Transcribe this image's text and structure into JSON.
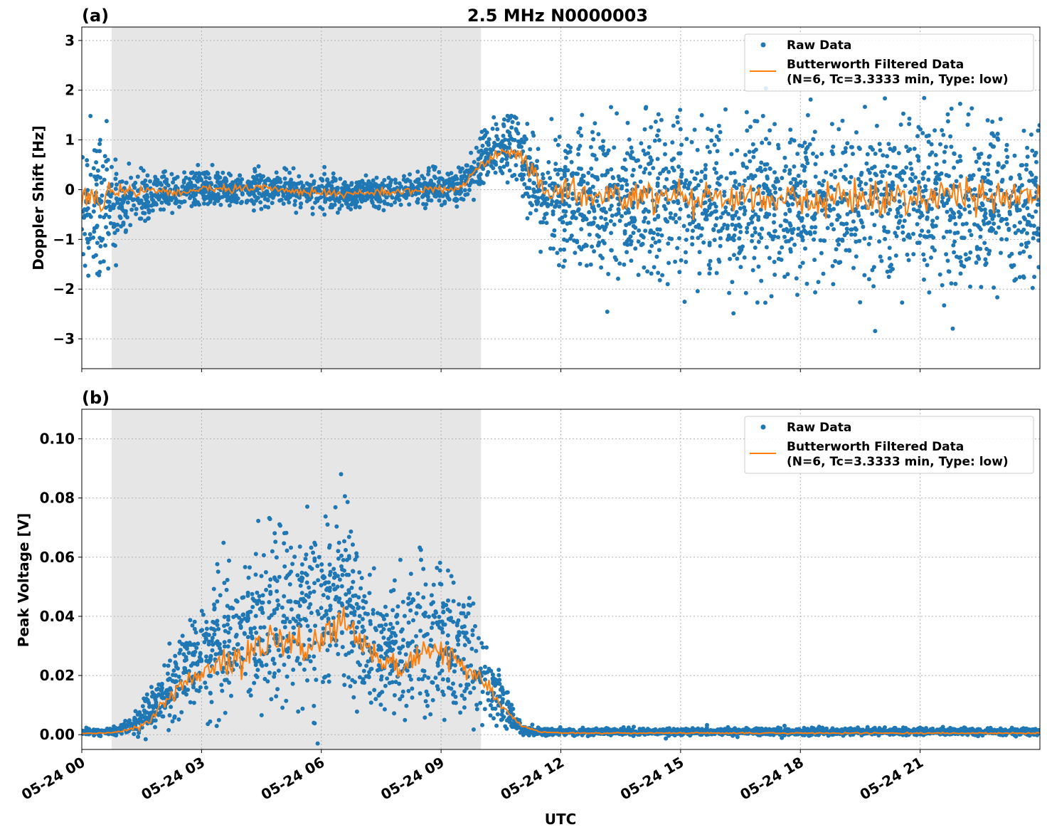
{
  "title": "2.5 MHz N0000003",
  "xlabel": "UTC",
  "x_tick_labels": [
    "05-24 00",
    "05-24 03",
    "05-24 06",
    "05-24 09",
    "05-24 12",
    "05-24 15",
    "05-24 18",
    "05-24 21"
  ],
  "x_ticks_hours": [
    0,
    3,
    6,
    9,
    12,
    15,
    18,
    21
  ],
  "xlim_hours": [
    0,
    24
  ],
  "shaded_region_hours": [
    0.75,
    10.0
  ],
  "colors": {
    "raw": "#1f77b4",
    "filtered": "#ff7f0e",
    "shade": "#e6e6e6",
    "grid": "#b0b0b0"
  },
  "grid": true,
  "chart_data": [
    {
      "type": "scatter+line",
      "panel_label": "(a)",
      "ylabel": "Doppler Shift [Hz]",
      "ylim": [
        -3.6,
        3.27
      ],
      "y_ticks": [
        3,
        2,
        1,
        0,
        -1,
        -2,
        -3
      ],
      "y_tick_labels": [
        "3",
        "2",
        "1",
        "0",
        "−1",
        "−2",
        "−3"
      ],
      "legend": {
        "placement": "top-right",
        "entries": [
          "Raw Data",
          "Butterworth Filtered Data",
          "(N=6, Tc=3.3333 min, Type: low)"
        ]
      },
      "x_hours": [
        0,
        0.5,
        1,
        1.5,
        2,
        2.5,
        3,
        3.5,
        4,
        4.5,
        5,
        5.5,
        6,
        6.5,
        7,
        7.5,
        8,
        8.5,
        9,
        9.5,
        10,
        10.5,
        11,
        11.5,
        12,
        12.5,
        13,
        13.5,
        14,
        14.5,
        15,
        15.5,
        16,
        16.5,
        17,
        17.5,
        18,
        18.5,
        19,
        19.5,
        20,
        20.5,
        21,
        21.5,
        22,
        22.5,
        23,
        23.5,
        24
      ],
      "filtered": [
        -0.1,
        -0.2,
        -0.05,
        -0.05,
        -0.05,
        -0.05,
        0.0,
        0.0,
        0.0,
        0.05,
        0.0,
        -0.05,
        -0.05,
        -0.1,
        -0.05,
        -0.05,
        -0.05,
        0.0,
        0.0,
        0.05,
        0.5,
        0.8,
        0.7,
        0.0,
        -0.05,
        -0.1,
        -0.1,
        -0.1,
        -0.15,
        -0.1,
        -0.1,
        -0.15,
        -0.1,
        -0.15,
        -0.2,
        -0.15,
        -0.2,
        -0.2,
        -0.2,
        -0.15,
        -0.2,
        -0.15,
        -0.15,
        -0.1,
        -0.1,
        -0.15,
        -0.1,
        -0.15,
        -0.2
      ],
      "raw_lower": [
        -1.6,
        -1.5,
        -0.9,
        -0.7,
        -0.45,
        -0.35,
        -0.3,
        -0.3,
        -0.3,
        -0.3,
        -0.3,
        -0.35,
        -0.35,
        -0.4,
        -0.35,
        -0.35,
        -0.35,
        -0.3,
        -0.3,
        -0.25,
        0.1,
        0.3,
        0.0,
        -1.0,
        -1.3,
        -1.5,
        -1.6,
        -1.6,
        -1.6,
        -1.6,
        -1.6,
        -1.6,
        -1.7,
        -1.7,
        -1.7,
        -1.7,
        -1.7,
        -1.6,
        -1.6,
        -1.6,
        -1.6,
        -1.6,
        -1.6,
        -1.6,
        -1.6,
        -1.6,
        -1.6,
        -1.6,
        -1.7
      ],
      "raw_upper": [
        1.2,
        0.8,
        0.4,
        0.3,
        0.3,
        0.35,
        0.4,
        0.3,
        0.35,
        0.4,
        0.3,
        0.25,
        0.25,
        0.2,
        0.25,
        0.25,
        0.25,
        0.3,
        0.35,
        0.4,
        1.1,
        1.4,
        1.4,
        0.6,
        0.9,
        1.1,
        1.2,
        1.2,
        1.2,
        1.2,
        1.2,
        1.2,
        1.2,
        1.1,
        1.1,
        1.1,
        1.1,
        1.1,
        1.1,
        1.1,
        1.2,
        1.2,
        1.2,
        1.2,
        1.2,
        1.2,
        1.2,
        1.2,
        1.1
      ]
    },
    {
      "type": "scatter+line",
      "panel_label": "(b)",
      "ylabel": "Peak Voltage [V]",
      "ylim": [
        -0.005,
        0.11
      ],
      "y_ticks": [
        0,
        0.02,
        0.04,
        0.06,
        0.08,
        0.1
      ],
      "y_tick_labels": [
        "0.00",
        "0.02",
        "0.04",
        "0.06",
        "0.08",
        "0.10"
      ],
      "legend": {
        "placement": "top-right",
        "entries": [
          "Raw Data",
          "Butterworth Filtered Data",
          "(N=6, Tc=3.3333 min, Type: low)"
        ]
      },
      "x_hours": [
        0,
        0.5,
        1,
        1.5,
        2,
        2.5,
        3,
        3.5,
        4,
        4.5,
        5,
        5.5,
        6,
        6.5,
        7,
        7.5,
        8,
        8.5,
        9,
        9.5,
        10,
        10.5,
        11,
        11.5,
        12,
        12.5,
        13,
        13.5,
        14,
        14.5,
        15,
        15.5,
        16,
        16.5,
        17,
        17.5,
        18,
        18.5,
        19,
        19.5,
        20,
        20.5,
        21,
        21.5,
        22,
        22.5,
        23,
        23.5,
        24
      ],
      "filtered": [
        0.0005,
        0.0005,
        0.001,
        0.003,
        0.01,
        0.017,
        0.02,
        0.025,
        0.025,
        0.03,
        0.033,
        0.03,
        0.033,
        0.038,
        0.03,
        0.025,
        0.022,
        0.028,
        0.028,
        0.025,
        0.02,
        0.01,
        0.003,
        0.001,
        0.0005,
        0.0005,
        0.0005,
        0.0005,
        0.0005,
        0.0005,
        0.0005,
        0.0005,
        0.0005,
        0.0005,
        0.0005,
        0.0005,
        0.0005,
        0.0005,
        0.0005,
        0.0005,
        0.0005,
        0.0005,
        0.0005,
        0.0005,
        0.0005,
        0.0005,
        0.0005,
        0.0005,
        0.0005
      ],
      "raw_lower": [
        0.0,
        0.0,
        0.0,
        0.0,
        0.004,
        0.008,
        0.01,
        0.01,
        0.012,
        0.013,
        0.013,
        0.012,
        0.014,
        0.018,
        0.012,
        0.01,
        0.01,
        0.01,
        0.01,
        0.01,
        0.01,
        0.004,
        0.0,
        0.0,
        0.0,
        0.0,
        0.0,
        0.0,
        0.0,
        0.0,
        0.0,
        0.0,
        0.0,
        0.0,
        0.0,
        0.0,
        0.0,
        0.0,
        0.0,
        0.0,
        0.0,
        0.0,
        0.0,
        0.0,
        0.0,
        0.0,
        0.0,
        0.0,
        0.0
      ],
      "raw_upper": [
        0.002,
        0.002,
        0.003,
        0.01,
        0.022,
        0.032,
        0.045,
        0.05,
        0.05,
        0.06,
        0.065,
        0.06,
        0.07,
        0.075,
        0.055,
        0.045,
        0.05,
        0.055,
        0.055,
        0.05,
        0.035,
        0.018,
        0.004,
        0.002,
        0.002,
        0.002,
        0.002,
        0.002,
        0.002,
        0.002,
        0.002,
        0.002,
        0.002,
        0.002,
        0.002,
        0.002,
        0.002,
        0.002,
        0.002,
        0.002,
        0.002,
        0.002,
        0.002,
        0.002,
        0.002,
        0.002,
        0.002,
        0.002,
        0.002
      ]
    }
  ]
}
